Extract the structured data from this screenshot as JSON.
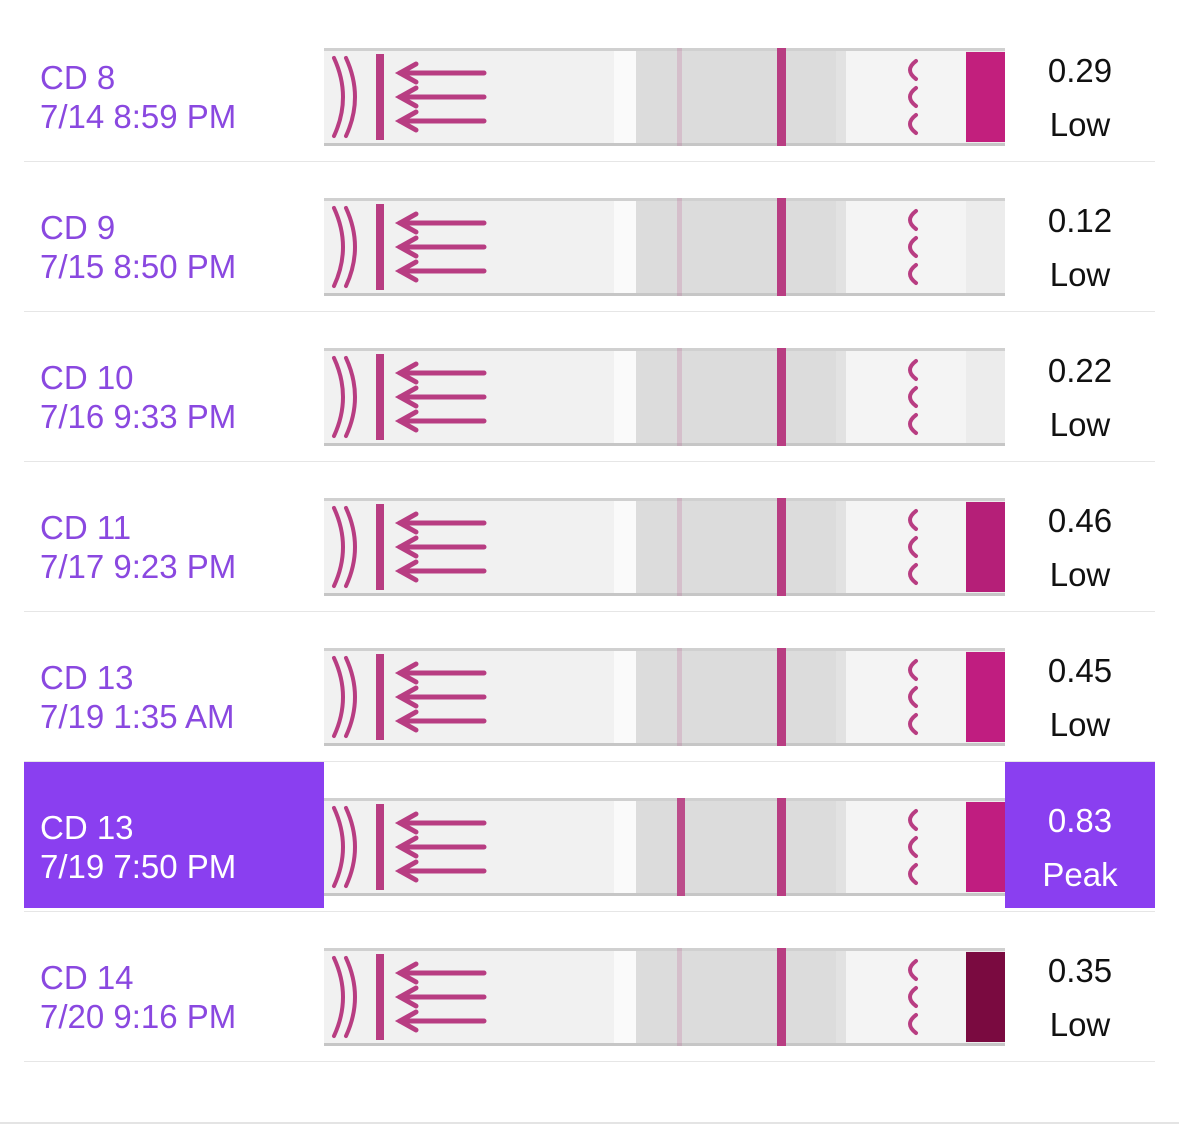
{
  "colors": {
    "accent": "#8a3ff0",
    "label_text": "#8a48e0",
    "test_line": "#b83d82",
    "control_cap": "#c21f7d"
  },
  "results": [
    {
      "cycle_day": "CD 8",
      "datetime": "7/14 8:59 PM",
      "value": "0.29",
      "level": "Low",
      "selected": false,
      "strip": {
        "arrows": 3,
        "pad": "#c21f7d"
      }
    },
    {
      "cycle_day": "CD 9",
      "datetime": "7/15 8:50 PM",
      "value": "0.12",
      "level": "Low",
      "selected": false,
      "strip": {
        "arrows": 3,
        "pad": "none"
      }
    },
    {
      "cycle_day": "CD 10",
      "datetime": "7/16 9:33 PM",
      "value": "0.22",
      "level": "Low",
      "selected": false,
      "strip": {
        "arrows": 3,
        "pad": "none"
      }
    },
    {
      "cycle_day": "CD 11",
      "datetime": "7/17 9:23 PM",
      "value": "0.46",
      "level": "Low",
      "selected": false,
      "strip": {
        "arrows": 3,
        "pad": "#b51f78"
      }
    },
    {
      "cycle_day": "CD 13",
      "datetime": "7/19 1:35 AM",
      "value": "0.45",
      "level": "Low",
      "selected": false,
      "strip": {
        "arrows": 3,
        "pad": "#c01d80"
      }
    },
    {
      "cycle_day": "CD 13",
      "datetime": "7/19 7:50 PM",
      "value": "0.83",
      "level": "Peak",
      "selected": true,
      "strip": {
        "arrows": 3,
        "pad": "#c01d80"
      }
    },
    {
      "cycle_day": "CD 14",
      "datetime": "7/20 9:16 PM",
      "value": "0.35",
      "level": "Low",
      "selected": false,
      "strip": {
        "arrows": 3,
        "pad": "#7a0a40"
      }
    }
  ]
}
